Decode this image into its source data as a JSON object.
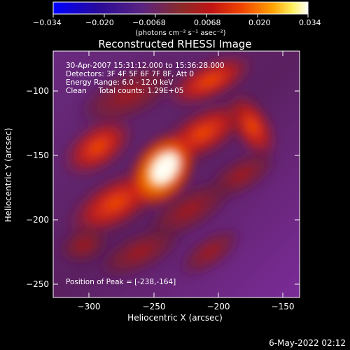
{
  "colorbar": {
    "ticks": [
      "−0.034",
      "−0.020",
      "−0.0068",
      "0.0068",
      "0.020",
      "0.034"
    ],
    "units_label": "(photons cm⁻² s⁻¹ asec⁻²)",
    "range": [
      -0.034,
      0.034
    ]
  },
  "image": {
    "title": "Reconstructed RHESSI Image",
    "info_lines": [
      "30-Apr-2007 15:31:12.000 to 15:36:28.000",
      "Detectors: 3F 4F 5F 6F 7F 8F, Att 0",
      "Energy Range: 6.0 - 12.0 keV",
      "Clean     Total counts: 1.29E+05"
    ],
    "peak_text": "Position of Peak = [-238,-164]"
  },
  "axes": {
    "xlabel": "Heliocentric X (arcsec)",
    "ylabel": "Heliocentric Y (arcsec)",
    "xticks": [
      "−300",
      "−250",
      "−200",
      "−150"
    ],
    "yticks": [
      "−100",
      "−150",
      "−200",
      "−250"
    ],
    "xlim": [
      -333,
      -136
    ],
    "ylim": [
      -268,
      -70
    ]
  },
  "footer": {
    "date": "6-May-2022 02:12"
  },
  "palette": {
    "colorbar_stops": [
      "#0000ff",
      "#3a0aa8",
      "#6a2890",
      "#8a2a2a",
      "#c01414",
      "#f04400",
      "#ffa000",
      "#fff060",
      "#ffffff"
    ],
    "background": "#000000",
    "text": "#ffffff"
  }
}
